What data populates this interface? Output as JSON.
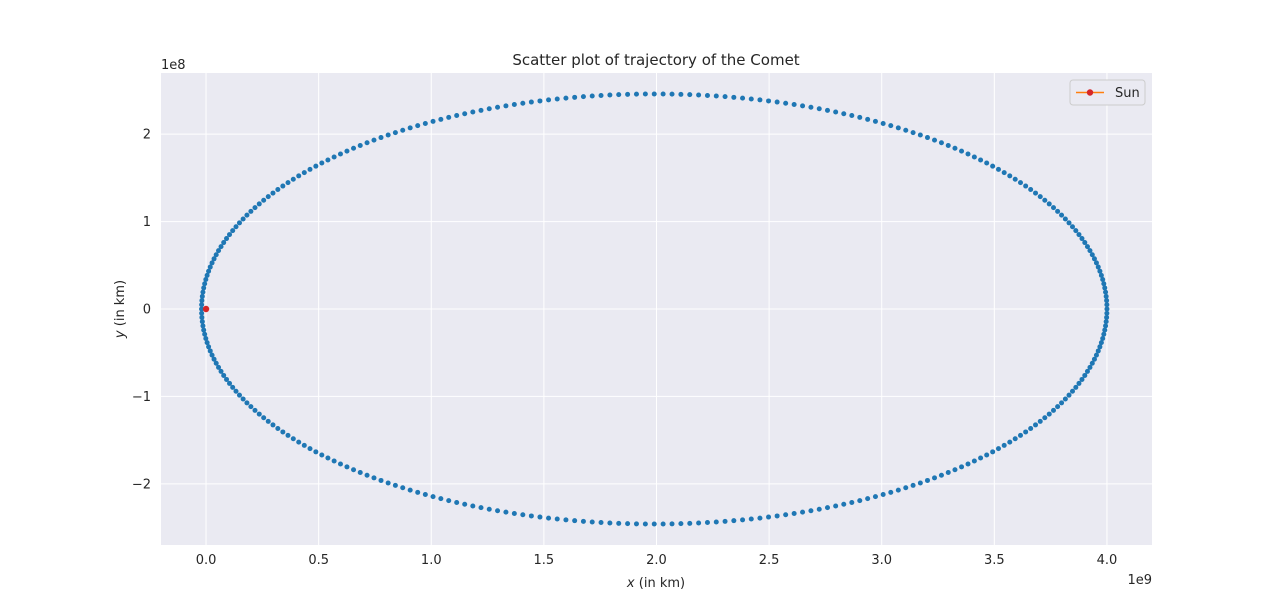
{
  "chart_data": {
    "type": "scatter",
    "title": "Scatter plot of trajectory of the Comet",
    "xlabel_var": "x",
    "xlabel_unit": " (in km)",
    "ylabel_var": "y",
    "ylabel_unit": " (in km)",
    "x_offset_label": "1e9",
    "y_offset_label": "1e8",
    "xlim": [
      -0.2,
      4.2
    ],
    "ylim": [
      -2.7,
      2.7
    ],
    "x_scale_factor": 1000000000,
    "y_scale_factor": 100000000,
    "x_ticks": [
      {
        "value": 0.0,
        "label": "0.0"
      },
      {
        "value": 0.5,
        "label": "0.5"
      },
      {
        "value": 1.0,
        "label": "1.0"
      },
      {
        "value": 1.5,
        "label": "1.5"
      },
      {
        "value": 2.0,
        "label": "2.0"
      },
      {
        "value": 2.5,
        "label": "2.5"
      },
      {
        "value": 3.0,
        "label": "3.0"
      },
      {
        "value": 3.5,
        "label": "3.5"
      },
      {
        "value": 4.0,
        "label": "4.0"
      }
    ],
    "y_ticks": [
      {
        "value": 2,
        "label": "2"
      },
      {
        "value": 1,
        "label": "1"
      },
      {
        "value": 0,
        "label": "0"
      },
      {
        "value": -1,
        "label": "−1"
      },
      {
        "value": -2,
        "label": "−2"
      }
    ],
    "grid": true,
    "legend_position": "top-right",
    "series": [
      {
        "kind": "orbit",
        "color": "#1f77b4",
        "orbit": {
          "perihelion_x": -0.02,
          "aphelion_x": 4.0,
          "semi_minor": 2.46,
          "point_count": 320
        }
      },
      {
        "name": "Sun",
        "kind": "point",
        "marker_color": "#d62728",
        "line_color": "#ff7f0e",
        "x": 0,
        "y": 0
      }
    ]
  }
}
